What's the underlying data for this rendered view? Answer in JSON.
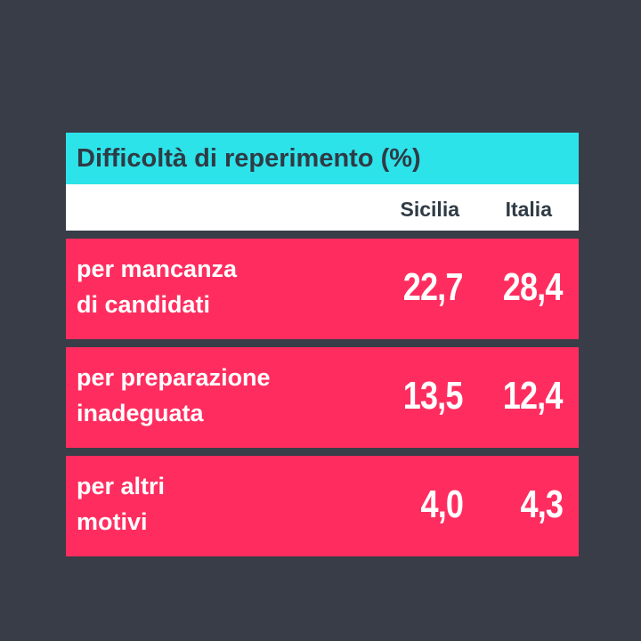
{
  "chart_data": {
    "type": "table",
    "title": "Difficoltà di reperimento (%)",
    "columns": [
      "Sicilia",
      "Italia"
    ],
    "rows": [
      {
        "label_lines": [
          "per mancanza",
          "di candidati"
        ],
        "values": [
          "22,7",
          "28,4"
        ]
      },
      {
        "label_lines": [
          "per preparazione",
          "inadeguata"
        ],
        "values": [
          "13,5",
          "12,4"
        ]
      },
      {
        "label_lines": [
          "per altri",
          "motivi"
        ],
        "values": [
          "4,0",
          "4,3"
        ]
      }
    ]
  },
  "colors": {
    "background": "#383d48",
    "title_bar": "#2de3ea",
    "header_row": "#ffffff",
    "data_row": "#ff2d5f",
    "dark_text": "#2f3b45",
    "light_text": "#ffffff"
  }
}
